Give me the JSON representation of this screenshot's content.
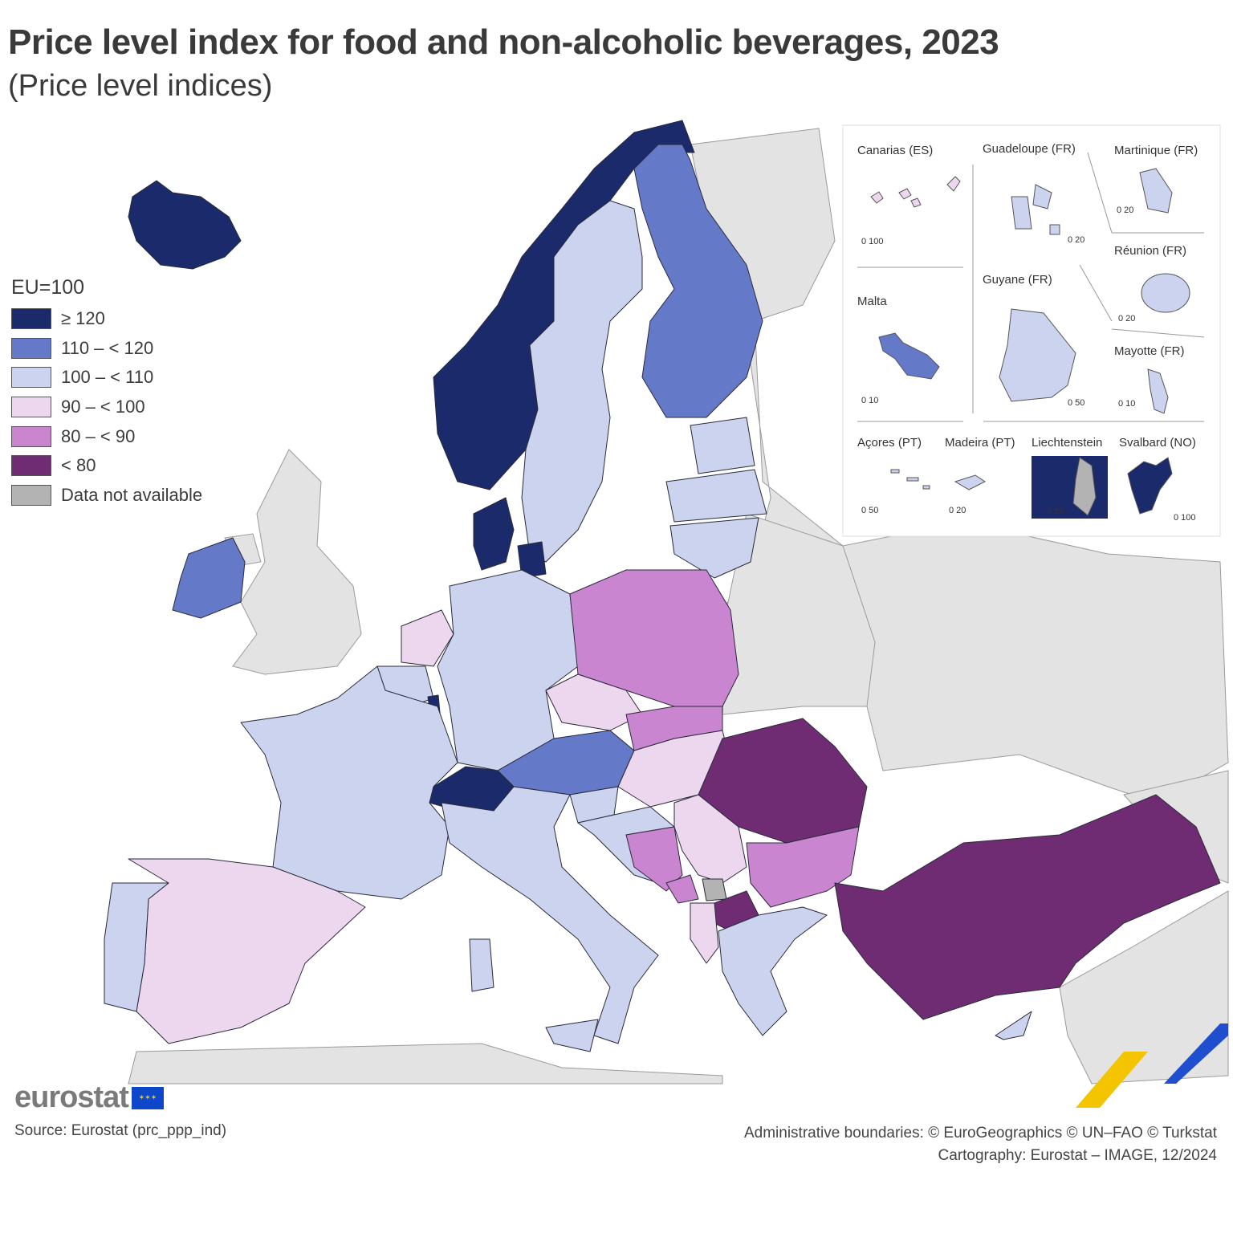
{
  "title": "Price level index for food and non-alcoholic beverages, 2023",
  "subtitle": "(Price level indices)",
  "legend": {
    "title": "EU=100",
    "classes": [
      {
        "label": "≥ 120",
        "color": "#1b2a6b"
      },
      {
        "label": "110 – < 120",
        "color": "#6479c8"
      },
      {
        "label": "100 – < 110",
        "color": "#cbd3ee"
      },
      {
        "label": "90 – < 100",
        "color": "#ecd7ee"
      },
      {
        "label": "80 – < 90",
        "color": "#c985cf"
      },
      {
        "label": "< 80",
        "color": "#702c73"
      },
      {
        "label": "Data not available",
        "color": "#b3b3b3"
      }
    ]
  },
  "countries": {
    "Iceland": "≥ 120",
    "Norway": "≥ 120",
    "Switzerland": "≥ 120",
    "Denmark": "≥ 120",
    "Luxembourg": "≥ 120",
    "Finland": "110 – < 120",
    "Ireland": "110 – < 120",
    "Austria": "110 – < 120",
    "Malta": "110 – < 120",
    "Sweden": "100 – < 110",
    "Germany": "100 – < 110",
    "France": "100 – < 110",
    "Belgium": "100 – < 110",
    "Italy": "100 – < 110",
    "Portugal": "100 – < 110",
    "Greece": "100 – < 110",
    "Cyprus": "100 – < 110",
    "Estonia": "100 – < 110",
    "Latvia": "100 – < 110",
    "Lithuania": "100 – < 110",
    "Croatia": "100 – < 110",
    "Slovenia": "100 – < 110",
    "Spain": "90 – < 100",
    "Netherlands": "90 – < 100",
    "Czechia": "90 – < 100",
    "Hungary": "90 – < 100",
    "Serbia": "90 – < 100",
    "Albania": "90 – < 100",
    "Poland": "80 – < 90",
    "Slovakia": "80 – < 90",
    "Bulgaria": "80 – < 90",
    "Bosnia and Herzegovina": "80 – < 90",
    "Montenegro": "80 – < 90",
    "Romania": "< 80",
    "Türkiye": "< 80",
    "North Macedonia": "< 80",
    "Kosovo": "Data not available"
  },
  "insets": {
    "canarias": {
      "label": "Canarias (ES)",
      "scale": "0   100"
    },
    "guadeloupe": {
      "label": "Guadeloupe (FR)",
      "scale": "0   20"
    },
    "martinique": {
      "label": "Martinique (FR)",
      "scale": "0   20"
    },
    "reunion": {
      "label": "Réunion (FR)",
      "scale": "0   20"
    },
    "malta": {
      "label": "Malta",
      "scale": "0   10"
    },
    "guyane": {
      "label": "Guyane (FR)",
      "scale": "0 50"
    },
    "mayotte": {
      "label": "Mayotte (FR)",
      "scale": "0  10"
    },
    "acores": {
      "label": "Açores (PT)",
      "scale": "0   50"
    },
    "madeira": {
      "label": "Madeira (PT)",
      "scale": "0   20"
    },
    "liechtenstein": {
      "label": "Liechtenstein",
      "scale": "0   10"
    },
    "svalbard": {
      "label": "Svalbard (NO)",
      "scale": "0 100"
    }
  },
  "logo": "eurostat",
  "source": "Source: Eurostat (prc_ppp_ind)",
  "credits": {
    "line1": "Administrative boundaries: © EuroGeographics © UN–FAO © Turkstat",
    "line2": "Cartography: Eurostat – IMAGE, 12/2024"
  }
}
